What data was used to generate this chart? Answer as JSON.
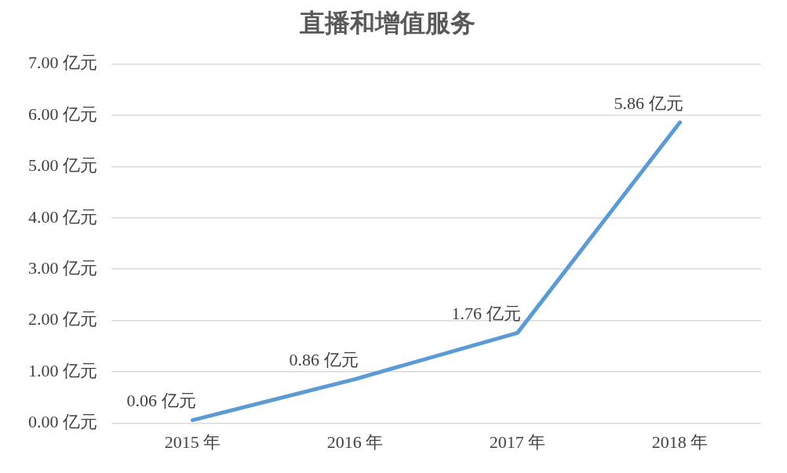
{
  "chart_data": {
    "type": "line",
    "title": "直播和增值服务",
    "categories": [
      "2015 年",
      "2016 年",
      "2017 年",
      "2018 年"
    ],
    "series": [
      {
        "color": "#5b9bd5",
        "values": [
          0.06,
          0.86,
          1.76,
          5.86
        ],
        "value_labels": [
          "0.06 亿元",
          "0.86 亿元",
          "1.76 亿元",
          "5.86 亿元"
        ]
      }
    ],
    "ylim": [
      0,
      7
    ],
    "yticks": [
      {
        "value": 0,
        "label": "0.00 亿元"
      },
      {
        "value": 1,
        "label": "1.00 亿元"
      },
      {
        "value": 2,
        "label": "2.00 亿元"
      },
      {
        "value": 3,
        "label": "3.00 亿元"
      },
      {
        "value": 4,
        "label": "4.00 亿元"
      },
      {
        "value": 5,
        "label": "5.00 亿元"
      },
      {
        "value": 6,
        "label": "6.00 亿元"
      },
      {
        "value": 7,
        "label": "7.00 亿元"
      }
    ],
    "grid": "y",
    "legend": false,
    "marker": "none",
    "line_style": "solid"
  }
}
